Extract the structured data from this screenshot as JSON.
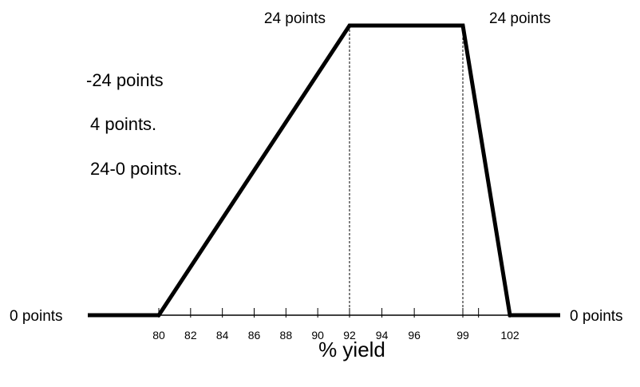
{
  "colors": {
    "line": "#000000",
    "text": "#000000",
    "background": "#ffffff"
  },
  "side_text": [
    "-24 points",
    "4 points.",
    "24-0 points."
  ],
  "chart_data": {
    "type": "line",
    "title": "",
    "xlabel": "% yield",
    "ylabel": "",
    "series": [
      {
        "points": [
          {
            "x": 80,
            "y": 0
          },
          {
            "x": 92,
            "y": 24
          },
          {
            "x": 99,
            "y": 24
          },
          {
            "x": 102,
            "y": 0
          }
        ]
      }
    ],
    "flat_extensions": [
      "below 80: 0 points",
      "above 102: 0 points"
    ],
    "x_ticks": [
      80,
      82,
      84,
      86,
      88,
      90,
      92,
      94,
      96,
      99,
      102
    ],
    "x_minor_ticks": [
      100
    ],
    "reference_lines_at_x": [
      92,
      99
    ],
    "point_labels": [
      {
        "x": 92,
        "y": 24,
        "text": "24 points"
      },
      {
        "x": 99,
        "y": 24,
        "text": "24 points"
      }
    ],
    "end_labels": {
      "left": "0 points",
      "right": "0 points"
    },
    "grid": false,
    "legend": "none"
  }
}
